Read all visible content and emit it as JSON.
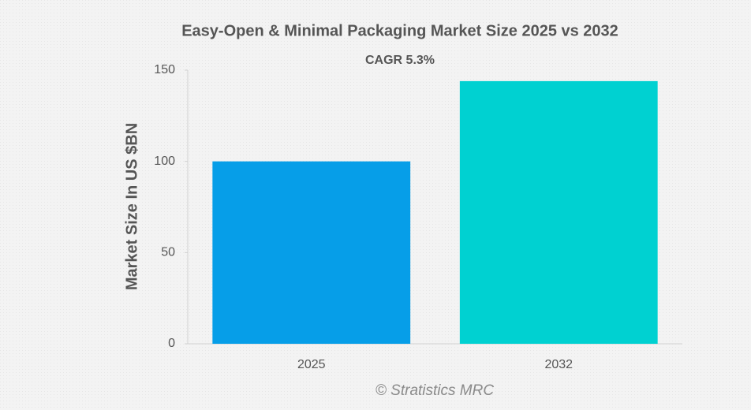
{
  "chart_data": {
    "type": "bar",
    "title": "Easy-Open & Minimal Packaging Market Size 2025 vs 2032",
    "subtitle": "CAGR 5.3%",
    "y_label": "Market Size In US $BN",
    "watermark": "© Stratistics MRC",
    "categories": [
      "2025",
      "2032"
    ],
    "values": [
      100,
      144
    ],
    "colors": [
      "#069ee8",
      "#00d1d1"
    ],
    "ylim": [
      0,
      150
    ],
    "yticks": [
      0,
      50,
      100,
      150
    ],
    "grid": false
  }
}
